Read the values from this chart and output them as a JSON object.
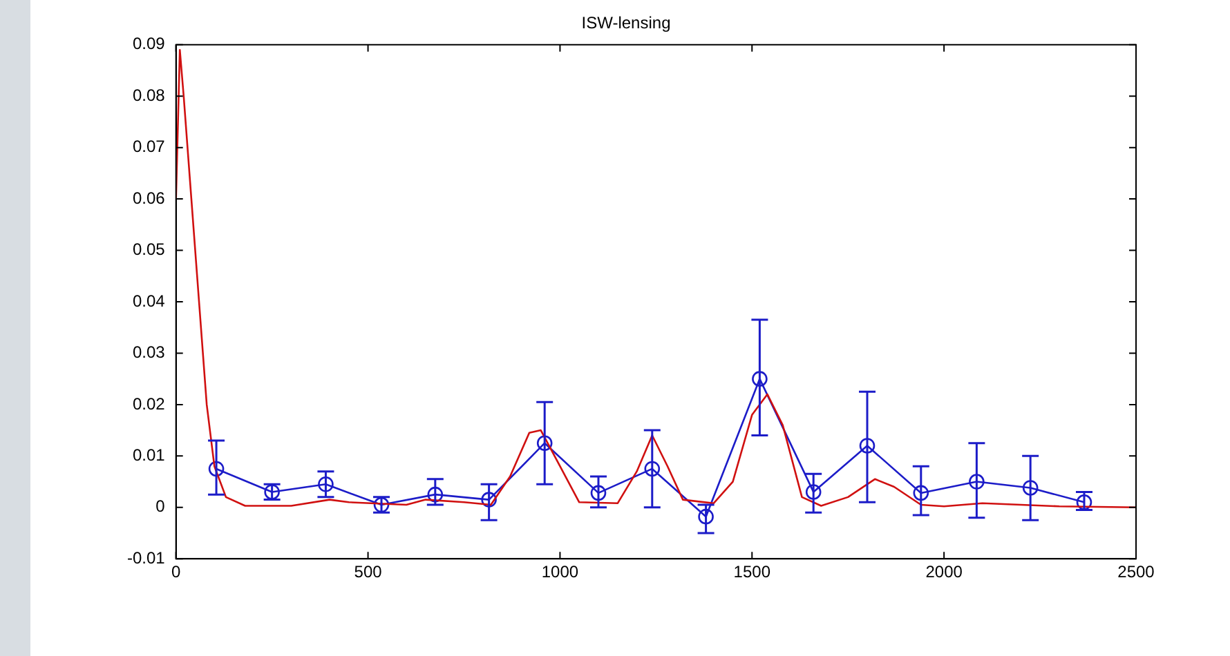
{
  "chart_data": {
    "type": "line",
    "title": "ISW-lensing",
    "xlim": [
      0,
      2500
    ],
    "xticks": [
      0,
      500,
      1000,
      1500,
      2000,
      2500
    ],
    "ylim": [
      -0.01,
      0.09
    ],
    "yticks": [
      -0.01,
      0,
      0.01,
      0.02,
      0.03,
      0.04,
      0.05,
      0.06,
      0.07,
      0.08,
      0.09
    ],
    "grid": false,
    "legend": false,
    "series": [
      {
        "color": "#d01010",
        "marker": "none",
        "x": [
          0,
          10,
          20,
          40,
          60,
          80,
          100,
          130,
          180,
          300,
          400,
          450,
          600,
          650,
          750,
          820,
          870,
          920,
          950,
          1000,
          1050,
          1150,
          1200,
          1240,
          1280,
          1320,
          1400,
          1450,
          1500,
          1540,
          1580,
          1630,
          1680,
          1750,
          1820,
          1870,
          1940,
          2000,
          2100,
          2200,
          2300,
          2500
        ],
        "values": [
          0.06,
          0.089,
          0.08,
          0.06,
          0.04,
          0.02,
          0.008,
          0.002,
          0.0003,
          0.0003,
          0.0015,
          0.001,
          0.0005,
          0.0015,
          0.001,
          0.0005,
          0.006,
          0.0145,
          0.015,
          0.008,
          0.001,
          0.0008,
          0.007,
          0.014,
          0.008,
          0.0015,
          0.0008,
          0.005,
          0.018,
          0.022,
          0.016,
          0.002,
          0.0003,
          0.002,
          0.0055,
          0.004,
          0.0005,
          0.0002,
          0.0008,
          0.0005,
          0.0002,
          0
        ]
      },
      {
        "color": "#1c1cc8",
        "marker": "circle",
        "x": [
          105,
          250,
          390,
          535,
          675,
          815,
          960,
          1100,
          1240,
          1380,
          1520,
          1660,
          1800,
          1940,
          2085,
          2225,
          2365
        ],
        "values": [
          0.0075,
          0.003,
          0.0045,
          0.0005,
          0.0025,
          0.0015,
          0.0125,
          0.0028,
          0.0075,
          -0.0018,
          0.025,
          0.003,
          0.012,
          0.0028,
          0.005,
          0.0038,
          0.001
        ],
        "errors": [
          [
            0.0025,
            0.013
          ],
          [
            0.0015,
            0.0045
          ],
          [
            0.002,
            0.007
          ],
          [
            -0.001,
            0.002
          ],
          [
            0.0005,
            0.0055
          ],
          [
            -0.0025,
            0.0045
          ],
          [
            0.0045,
            0.0205
          ],
          [
            0,
            0.006
          ],
          [
            0,
            0.015
          ],
          [
            -0.005,
            0.0005
          ],
          [
            0.014,
            0.0365
          ],
          [
            -0.001,
            0.0065
          ],
          [
            0.001,
            0.0225
          ],
          [
            -0.0015,
            0.008
          ],
          [
            -0.002,
            0.0125
          ],
          [
            -0.0025,
            0.01
          ],
          [
            -0.0005,
            0.003
          ]
        ]
      }
    ]
  }
}
